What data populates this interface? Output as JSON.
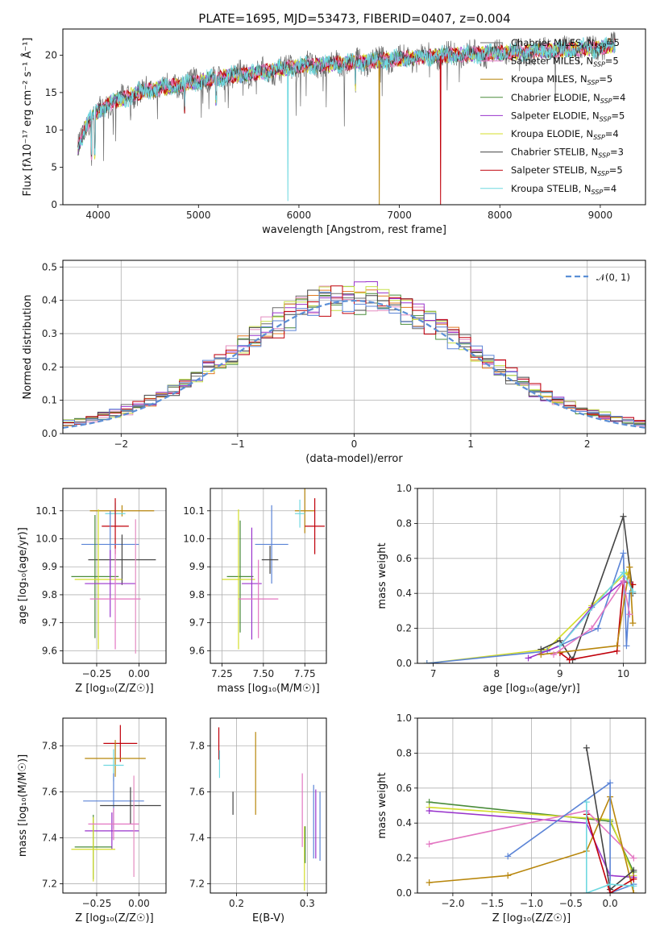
{
  "title": "PLATE=1695, MJD=53473, FIBERID=0407, z=0.004",
  "colors": {
    "Chabrier MILES": "#6b6b6b",
    "Salpeter MILES": "#e377c2",
    "Kroupa MILES": "#b8860b",
    "Chabrier ELODIE": "#4a8c3a",
    "Salpeter ELODIE": "#9933cc",
    "Kroupa ELODIE": "#d4dd2a",
    "Chabrier STELIB": "#444444",
    "Salpeter STELIB": "#c0000a",
    "Kroupa STELIB": "#6fd8e0",
    "blue": "#5b84d6",
    "orange": "#e07820",
    "pink": "#e48cc0",
    "lime": "#c6e04a"
  },
  "chart_data": [
    {
      "type": "line",
      "panel": "spectrum",
      "xlabel": "wavelength [Angstrom, rest frame]",
      "ylabel": "Flux [fλ10⁻¹⁷ erg cm⁻² s⁻¹ Å⁻¹]",
      "xlim": [
        3650,
        9450
      ],
      "ylim": [
        0,
        23.5
      ],
      "xticks": [
        4000,
        5000,
        6000,
        7000,
        8000,
        9000
      ],
      "yticks": [
        0,
        5,
        10,
        15,
        20
      ],
      "continuum": {
        "x": [
          3800,
          3850,
          3900,
          4000,
          4100,
          4200,
          4400,
          4600,
          4800,
          5000,
          5200,
          5500,
          6000,
          6500,
          7000,
          7500,
          8000,
          8500,
          9000,
          9200
        ],
        "y": [
          7.5,
          9.5,
          11,
          12.5,
          13.5,
          14,
          15,
          15.5,
          16,
          16.5,
          17,
          17.5,
          18.5,
          19,
          19.5,
          20,
          20.3,
          20.6,
          21,
          21.5
        ]
      },
      "dips": [
        {
          "x": 5890,
          "y": 0.5,
          "series": "Kroupa STELIB"
        },
        {
          "x": 6800,
          "y": 0.0,
          "series": "Kroupa MILES"
        },
        {
          "x": 7410,
          "y": 0.0,
          "series": "Salpeter STELIB"
        }
      ],
      "legend_position": "top-right",
      "series": [
        {
          "name": "Chabrier MILES",
          "nssp": "5"
        },
        {
          "name": "Salpeter MILES",
          "nssp": "5"
        },
        {
          "name": "Kroupa MILES",
          "nssp": "5"
        },
        {
          "name": "Chabrier ELODIE",
          "nssp": "4"
        },
        {
          "name": "Salpeter ELODIE",
          "nssp": "5"
        },
        {
          "name": "Kroupa ELODIE",
          "nssp": "4"
        },
        {
          "name": "Chabrier STELIB",
          "nssp": "3"
        },
        {
          "name": "Salpeter STELIB",
          "nssp": "5"
        },
        {
          "name": "Kroupa STELIB",
          "nssp": "4"
        }
      ],
      "legend_subscript": "SSP",
      "legend_prefix": "N"
    },
    {
      "type": "step",
      "panel": "residuals",
      "xlabel": "(data-model)/error",
      "ylabel": "Normed distribution",
      "xlim": [
        -2.5,
        2.5
      ],
      "ylim": [
        0,
        0.52
      ],
      "xticks": [
        -2,
        -1,
        0,
        1,
        2
      ],
      "yticks": [
        0.0,
        0.1,
        0.2,
        0.3,
        0.4,
        0.5
      ],
      "grid": true,
      "reference": {
        "name": "𝒩(0, 1)",
        "mean": 0,
        "sigma": 1
      },
      "bins": {
        "start": -2.5,
        "width": 0.1,
        "count": 50
      },
      "legend_position": "top-right"
    },
    {
      "type": "errorbar",
      "panel": "age-vs-Z",
      "xlabel": "Z [log₁₀(Z/Z☉)]",
      "ylabel": "age  [log₁₀(age/yr)]",
      "xlim": [
        -0.45,
        0.16
      ],
      "ylim": [
        9.555,
        10.18
      ],
      "xticks": [
        -0.25,
        0.0
      ],
      "xticklabels": [
        "−0.25",
        "0.00"
      ],
      "yticks": [
        9.6,
        9.7,
        9.8,
        9.9,
        10.0,
        10.1
      ],
      "points": [
        {
          "series": "Kroupa MILES",
          "x": -0.1,
          "xerr": 0.19,
          "y": 10.1,
          "yerr": 0.02
        },
        {
          "series": "Kroupa STELIB",
          "x": -0.14,
          "xerr": 0.06,
          "y": 10.09,
          "yerr": 0.04
        },
        {
          "series": "Salpeter STELIB",
          "x": -0.14,
          "xerr": 0.08,
          "y": 10.045,
          "yerr": 0.1
        },
        {
          "series": "Blue",
          "x": -0.17,
          "xerr": 0.17,
          "y": 9.98,
          "yerr": 0.12
        },
        {
          "series": "Chabrier STELIB",
          "x": -0.1,
          "xerr": 0.2,
          "y": 9.925,
          "yerr": 0.09
        },
        {
          "series": "Chabrier ELODIE",
          "x": -0.26,
          "xerr": 0.14,
          "y": 9.865,
          "yerr": 0.22
        },
        {
          "series": "Kroupa ELODIE",
          "x": -0.24,
          "xerr": 0.14,
          "y": 9.855,
          "yerr": 0.25
        },
        {
          "series": "Salpeter ELODIE",
          "x": -0.17,
          "xerr": 0.15,
          "y": 9.84,
          "yerr": 0.12
        },
        {
          "series": "Salpeter MILES",
          "x": -0.14,
          "xerr": 0.15,
          "y": 9.785,
          "yerr": 0.18
        },
        {
          "series": "Pink",
          "x": -0.02,
          "xerr": 0.0,
          "y": 9.83,
          "yerr": 0.24
        }
      ]
    },
    {
      "type": "errorbar",
      "panel": "age-vs-mass",
      "xlabel": "mass [log₁₀(M/M☉)]",
      "xlim": [
        7.18,
        7.88
      ],
      "ylim": [
        9.555,
        10.18
      ],
      "xticks": [
        7.25,
        7.5,
        7.75
      ],
      "xticklabels": [
        "7.25",
        "7.50",
        "7.75"
      ],
      "yticks": [
        9.6,
        9.7,
        9.8,
        9.9,
        10.0,
        10.1
      ],
      "points": [
        {
          "series": "Kroupa MILES",
          "x": 7.75,
          "xerr": 0.06,
          "y": 10.1,
          "yerr": 0.08
        },
        {
          "series": "Kroupa STELIB",
          "x": 7.72,
          "xerr": 0.03,
          "y": 10.09,
          "yerr": 0.05
        },
        {
          "series": "Salpeter STELIB",
          "x": 7.81,
          "xerr": 0.06,
          "y": 10.045,
          "yerr": 0.1
        },
        {
          "series": "Blue",
          "x": 7.55,
          "xerr": 0.1,
          "y": 9.98,
          "yerr": 0.14
        },
        {
          "series": "Chabrier STELIB",
          "x": 7.54,
          "xerr": 0.05,
          "y": 9.925,
          "yerr": 0.05
        },
        {
          "series": "Chabrier ELODIE",
          "x": 7.36,
          "xerr": 0.08,
          "y": 9.865,
          "yerr": 0.2
        },
        {
          "series": "Kroupa ELODIE",
          "x": 7.35,
          "xerr": 0.1,
          "y": 9.855,
          "yerr": 0.25
        },
        {
          "series": "Salpeter ELODIE",
          "x": 7.43,
          "xerr": 0.06,
          "y": 9.84,
          "yerr": 0.2
        },
        {
          "series": "Salpeter MILES",
          "x": 7.47,
          "xerr": 0.12,
          "y": 9.785,
          "yerr": 0.14
        }
      ]
    },
    {
      "type": "line",
      "panel": "massweight-vs-age",
      "xlabel": "age  [log₁₀(age/yr)]",
      "ylabel": "mass weight",
      "xlim": [
        6.75,
        10.35
      ],
      "ylim": [
        0,
        1.0
      ],
      "xticks": [
        7,
        8,
        9,
        10
      ],
      "yticks": [
        0.0,
        0.2,
        0.4,
        0.6,
        0.8,
        1.0
      ],
      "grid": true,
      "series": [
        {
          "series": "Kroupa ELODIE",
          "x": [
            6.9,
            8.8,
            9.5,
            10.05,
            10.15
          ],
          "y": [
            0.0,
            0.08,
            0.33,
            0.52,
            0.45
          ]
        },
        {
          "series": "Blue",
          "x": [
            6.9,
            8.8,
            9.6,
            10.0,
            10.05,
            10.1
          ],
          "y": [
            0.0,
            0.07,
            0.2,
            0.63,
            0.1,
            0.4
          ]
        },
        {
          "series": "Chabrier STELIB",
          "x": [
            8.7,
            9.0,
            9.2,
            10.0,
            10.15
          ],
          "y": [
            0.08,
            0.13,
            0.02,
            0.84,
            0.4
          ]
        },
        {
          "series": "Salpeter STELIB",
          "x": [
            9.0,
            9.15,
            9.9,
            10.0,
            10.15
          ],
          "y": [
            0.06,
            0.02,
            0.07,
            0.47,
            0.45
          ]
        },
        {
          "series": "Salpeter ELODIE",
          "x": [
            8.5,
            9.0,
            9.5,
            10.0,
            10.1
          ],
          "y": [
            0.03,
            0.1,
            0.32,
            0.47,
            0.46
          ]
        },
        {
          "series": "Kroupa MILES",
          "x": [
            8.7,
            9.9,
            10.1,
            10.15
          ],
          "y": [
            0.05,
            0.1,
            0.55,
            0.23
          ]
        },
        {
          "series": "Salpeter MILES",
          "x": [
            8.9,
            9.5,
            10.0,
            10.1
          ],
          "y": [
            0.05,
            0.2,
            0.47,
            0.28
          ]
        },
        {
          "series": "Kroupa STELIB",
          "x": [
            9.0,
            10.0,
            10.15
          ],
          "y": [
            0.1,
            0.52,
            0.41
          ]
        }
      ]
    },
    {
      "type": "errorbar",
      "panel": "mass-vs-Z",
      "xlabel": "Z [log₁₀(Z/Z☉)]",
      "ylabel": "mass [log₁₀(M/M☉)]",
      "xlim": [
        -0.45,
        0.16
      ],
      "ylim": [
        7.16,
        7.92
      ],
      "xticks": [
        -0.25,
        0.0
      ],
      "xticklabels": [
        "−0.25",
        "0.00"
      ],
      "yticks": [
        7.2,
        7.4,
        7.6,
        7.8
      ],
      "points": [
        {
          "series": "Salpeter STELIB",
          "x": -0.11,
          "xerr": 0.1,
          "y": 7.81,
          "yerr": 0.08
        },
        {
          "series": "Kroupa MILES",
          "x": -0.14,
          "xerr": 0.18,
          "y": 7.745,
          "yerr": 0.08
        },
        {
          "series": "Kroupa STELIB",
          "x": -0.15,
          "xerr": 0.06,
          "y": 7.715,
          "yerr": 0.07
        },
        {
          "series": "Blue",
          "x": -0.15,
          "xerr": 0.18,
          "y": 7.56,
          "yerr": 0.12
        },
        {
          "series": "Chabrier STELIB",
          "x": -0.05,
          "xerr": 0.18,
          "y": 7.54,
          "yerr": 0.08
        },
        {
          "series": "Salpeter ELODIE",
          "x": -0.16,
          "xerr": 0.16,
          "y": 7.43,
          "yerr": 0.08
        },
        {
          "series": "Chabrier ELODIE",
          "x": -0.27,
          "xerr": 0.11,
          "y": 7.36,
          "yerr": 0.14
        },
        {
          "series": "Kroupa ELODIE",
          "x": -0.27,
          "xerr": 0.13,
          "y": 7.35,
          "yerr": 0.14
        },
        {
          "series": "Salpeter MILES",
          "x": -0.15,
          "xerr": 0.15,
          "y": 7.46,
          "yerr": 0.07
        },
        {
          "series": "Pink",
          "x": -0.03,
          "xerr": 0.0,
          "y": 7.45,
          "yerr": 0.22
        }
      ]
    },
    {
      "type": "errorbar",
      "panel": "mass-vs-ebv",
      "xlabel": "E(B-V)",
      "xlim": [
        0.163,
        0.327
      ],
      "ylim": [
        7.16,
        7.92
      ],
      "xticks": [
        0.2,
        0.3
      ],
      "xticklabels": [
        "0.2",
        "0.3"
      ],
      "yticks": [
        7.2,
        7.4,
        7.6,
        7.8
      ],
      "points": [
        {
          "series": "Salpeter STELIB",
          "x": 0.175,
          "y": 7.81,
          "yerr": 0.07
        },
        {
          "series": "Kroupa STELIB",
          "x": 0.176,
          "y": 7.72,
          "yerr": 0.06
        },
        {
          "series": "Chabrier STELIB",
          "x": 0.195,
          "y": 7.55,
          "yerr": 0.05
        },
        {
          "series": "Kroupa MILES",
          "x": 0.227,
          "y": 7.68,
          "yerr": 0.18
        },
        {
          "series": "Salpeter MILES",
          "x": 0.293,
          "y": 7.52,
          "yerr": 0.16
        },
        {
          "series": "Kroupa ELODIE",
          "x": 0.296,
          "y": 7.31,
          "yerr": 0.14
        },
        {
          "series": "Chabrier ELODIE",
          "x": 0.297,
          "y": 7.37,
          "yerr": 0.08
        },
        {
          "series": "Salpeter ELODIE",
          "x": 0.312,
          "y": 7.46,
          "yerr": 0.15
        },
        {
          "series": "Blue",
          "x": 0.309,
          "y": 7.47,
          "yerr": 0.16
        },
        {
          "series": "Blue",
          "x": 0.318,
          "y": 7.45,
          "yerr": 0.15
        }
      ]
    },
    {
      "type": "line",
      "panel": "massweight-vs-Z",
      "xlabel": "Z [log₁₀(Z/Z☉)]",
      "ylabel": "mass weight",
      "xlim": [
        -2.45,
        0.45
      ],
      "ylim": [
        0,
        1.0
      ],
      "xticks": [
        -2.0,
        -1.5,
        -1.0,
        -0.5,
        0.0
      ],
      "xticklabels": [
        "−2.0",
        "−1.5",
        "−1.0",
        "−0.5",
        "0.0"
      ],
      "yticks": [
        0.0,
        0.2,
        0.4,
        0.6,
        0.8,
        1.0
      ],
      "grid": true,
      "series": [
        {
          "series": "Chabrier ELODIE",
          "x": [
            -2.3,
            0.0,
            0.3
          ],
          "y": [
            0.52,
            0.41,
            0.12
          ]
        },
        {
          "series": "Kroupa ELODIE",
          "x": [
            -2.3,
            0.0,
            0.3
          ],
          "y": [
            0.49,
            0.42,
            0.1
          ]
        },
        {
          "series": "Salpeter ELODIE",
          "x": [
            -2.3,
            -0.3,
            0.0,
            0.3
          ],
          "y": [
            0.47,
            0.4,
            0.1,
            0.09
          ]
        },
        {
          "series": "Salpeter MILES",
          "x": [
            -2.3,
            -0.3,
            0.3
          ],
          "y": [
            0.28,
            0.47,
            0.2
          ]
        },
        {
          "series": "Kroupa MILES",
          "x": [
            -2.3,
            -1.3,
            -0.3,
            0.0,
            0.3
          ],
          "y": [
            0.06,
            0.1,
            0.24,
            0.55,
            0.0
          ]
        },
        {
          "series": "Blue",
          "x": [
            -1.3,
            0.0,
            0.0,
            0.3
          ],
          "y": [
            0.21,
            0.63,
            0.0,
            0.05
          ]
        },
        {
          "series": "Chabrier STELIB",
          "x": [
            -0.3,
            0.0,
            0.3
          ],
          "y": [
            0.83,
            0.02,
            0.13
          ]
        },
        {
          "series": "Salpeter STELIB",
          "x": [
            -0.3,
            0.0,
            0.3
          ],
          "y": [
            0.45,
            0.0,
            0.08
          ]
        },
        {
          "series": "Kroupa STELIB",
          "x": [
            -0.3,
            -0.3,
            0.0,
            0.3
          ],
          "y": [
            0.52,
            0.0,
            0.05,
            0.04
          ]
        }
      ]
    }
  ]
}
